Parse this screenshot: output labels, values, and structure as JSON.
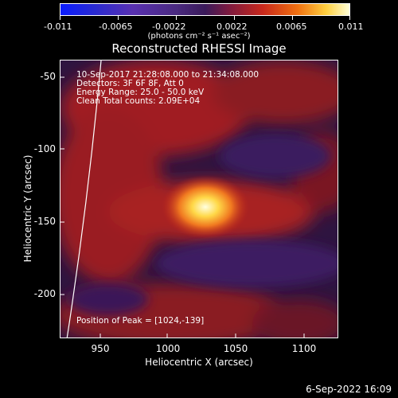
{
  "colorbar": {
    "tick_labels": [
      "-0.011",
      "-0.0065",
      "-0.0022",
      "0.0022",
      "0.0065",
      "0.011"
    ],
    "units": "(photons cm⁻² s⁻¹ asec⁻²)"
  },
  "title": "Reconstructed RHESSI Image",
  "info": {
    "line1": "10-Sep-2017 21:28:08.000 to 21:34:08.000",
    "line2": "Detectors: 3F 6F 8F, Att 0",
    "line3": "Energy Range: 25.0 - 50.0 keV",
    "line4": "Clean     Total counts: 2.09E+04"
  },
  "peak_label": "Position of Peak = [1024,-139]",
  "axes": {
    "xlabel": "Heliocentric X (arcsec)",
    "ylabel": "Heliocentric Y (arcsec)",
    "x_ticks": [
      "950",
      "1000",
      "1050",
      "1100"
    ],
    "y_ticks": [
      "-50",
      "-100",
      "-150",
      "-200"
    ],
    "xlim": [
      922,
      1115
    ],
    "ylim": [
      -228,
      -38
    ]
  },
  "timestamp": "6-Sep-2022 16:09",
  "colors": {
    "background": "#000000",
    "text": "#ffffff",
    "colormap": "SOHO/RHESSI red-temperature"
  }
}
